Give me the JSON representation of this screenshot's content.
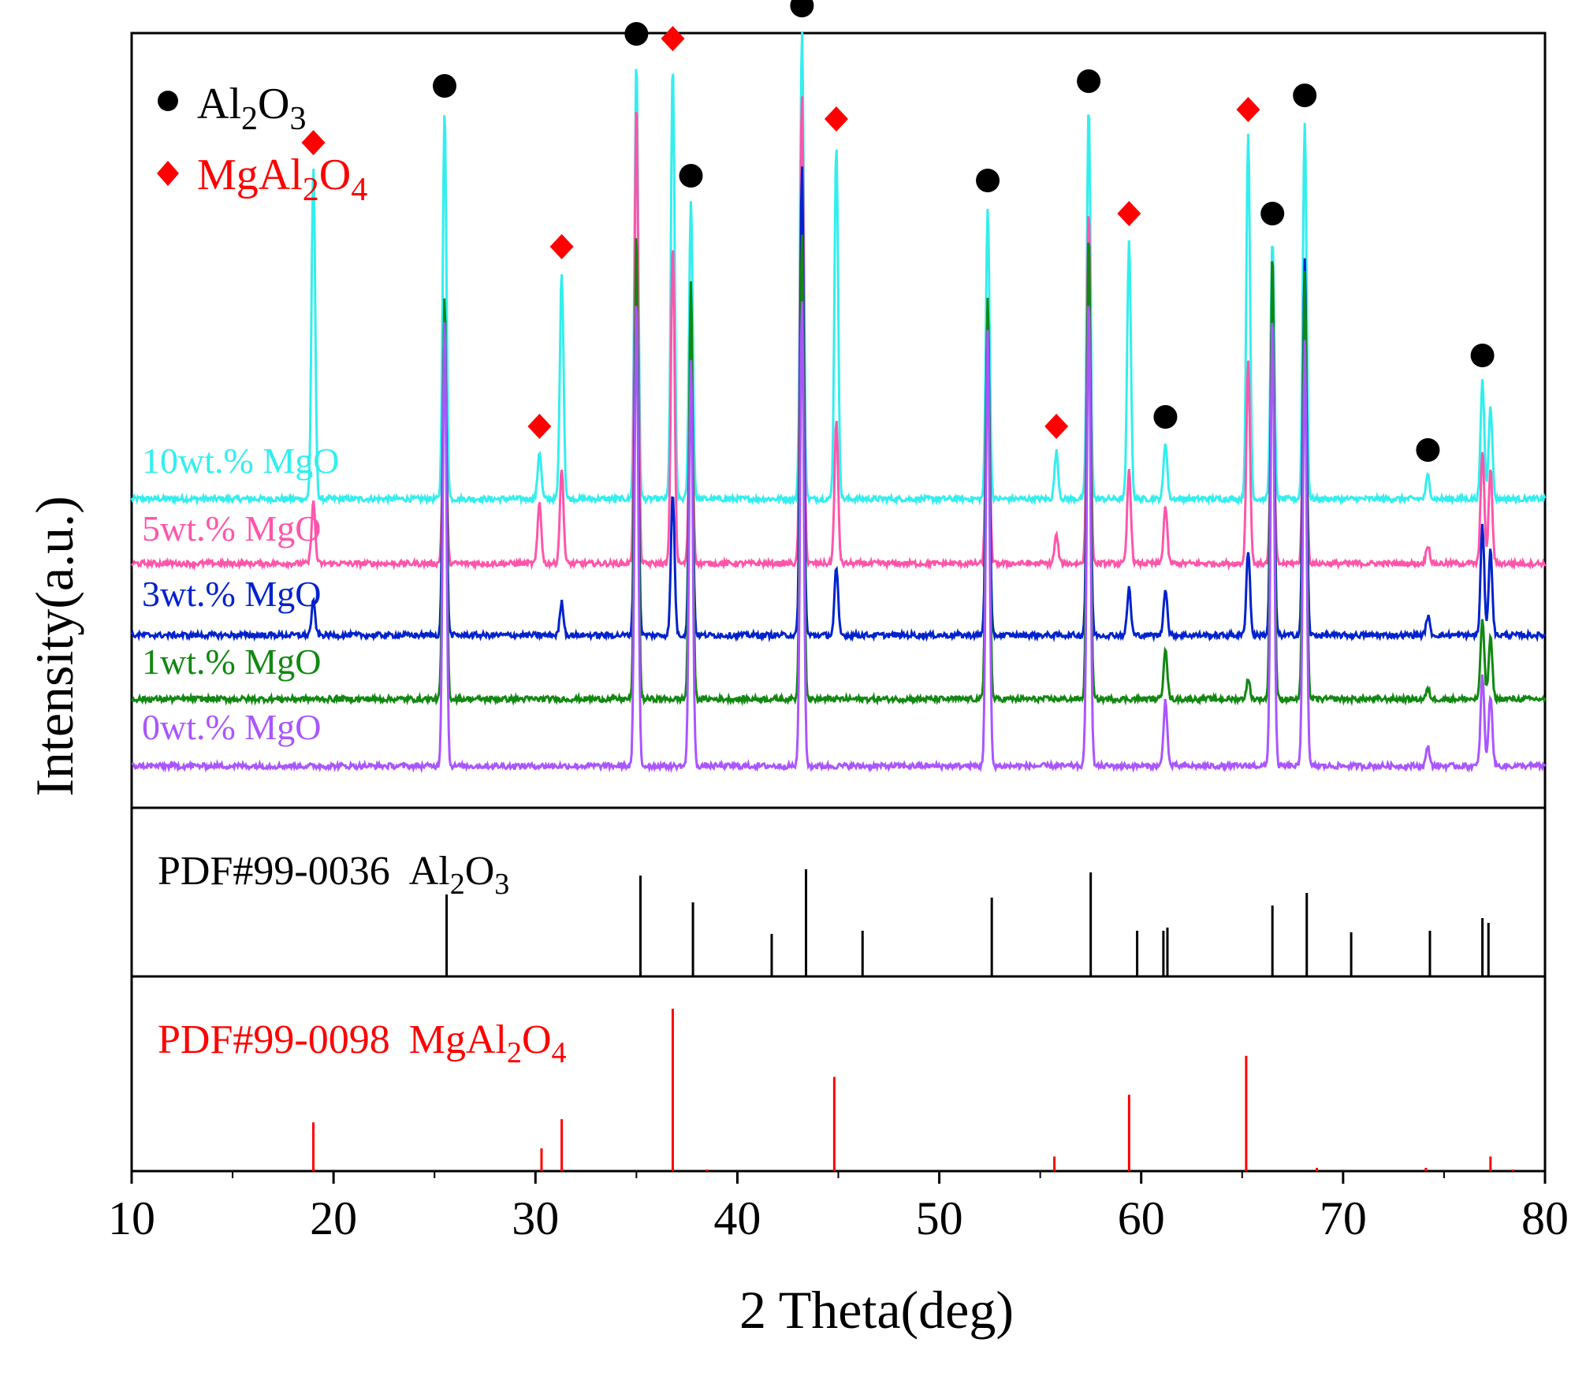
{
  "chart_data": {
    "type": "line",
    "title": "",
    "xlabel": "2 Theta(deg)",
    "ylabel": "Intensity(a.u.)",
    "xlim": [
      10,
      80
    ],
    "xticks": [
      10,
      20,
      30,
      40,
      50,
      60,
      70,
      80
    ],
    "legend": {
      "placement": "top-left",
      "entries": [
        {
          "marker": "circle",
          "color": "#000000",
          "formula": [
            "Al",
            "2",
            "O",
            "3"
          ]
        },
        {
          "marker": "diamond",
          "color": "#ff0000",
          "formula": [
            "MgAl",
            "2",
            "O",
            "4"
          ]
        }
      ]
    },
    "series": [
      {
        "name": "10wt.% MgO",
        "color": "#33eeee",
        "baseline": 0.22,
        "peaks": [
          [
            19.0,
            0.7
          ],
          [
            25.5,
            0.82
          ],
          [
            30.2,
            0.1
          ],
          [
            31.3,
            0.48
          ],
          [
            35.0,
            0.93
          ],
          [
            36.8,
            0.92
          ],
          [
            37.7,
            0.63
          ],
          [
            43.2,
            0.99
          ],
          [
            44.9,
            0.75
          ],
          [
            52.4,
            0.62
          ],
          [
            55.8,
            0.1
          ],
          [
            57.4,
            0.83
          ],
          [
            59.4,
            0.55
          ],
          [
            61.2,
            0.12
          ],
          [
            65.3,
            0.77
          ],
          [
            66.5,
            0.55
          ],
          [
            68.1,
            0.8
          ],
          [
            74.2,
            0.05
          ],
          [
            76.9,
            0.25
          ],
          [
            77.3,
            0.2
          ]
        ]
      },
      {
        "name": "5wt.% MgO",
        "color": "#ff55aa",
        "baseline": 0.22,
        "peaks": [
          [
            19.0,
            0.13
          ],
          [
            25.5,
            0.44
          ],
          [
            30.2,
            0.13
          ],
          [
            31.3,
            0.2
          ],
          [
            35.0,
            0.98
          ],
          [
            36.8,
            0.68
          ],
          [
            37.7,
            0.46
          ],
          [
            43.2,
            0.99
          ],
          [
            44.9,
            0.3
          ],
          [
            52.4,
            0.49
          ],
          [
            55.8,
            0.06
          ],
          [
            57.4,
            0.75
          ],
          [
            59.4,
            0.2
          ],
          [
            61.2,
            0.12
          ],
          [
            65.3,
            0.43
          ],
          [
            66.5,
            0.45
          ],
          [
            68.1,
            0.52
          ],
          [
            74.2,
            0.04
          ],
          [
            76.9,
            0.24
          ],
          [
            77.3,
            0.2
          ]
        ]
      },
      {
        "name": "3wt.% MgO",
        "color": "#0022cc",
        "baseline": 0.22,
        "peaks": [
          [
            19.0,
            0.07
          ],
          [
            25.5,
            0.7
          ],
          [
            31.3,
            0.07
          ],
          [
            35.0,
            0.8
          ],
          [
            36.8,
            0.3
          ],
          [
            37.7,
            0.62
          ],
          [
            43.2,
            0.99
          ],
          [
            44.9,
            0.14
          ],
          [
            52.4,
            0.7
          ],
          [
            57.4,
            0.8
          ],
          [
            59.4,
            0.1
          ],
          [
            61.2,
            0.1
          ],
          [
            65.3,
            0.18
          ],
          [
            66.5,
            0.75
          ],
          [
            68.1,
            0.8
          ],
          [
            74.2,
            0.04
          ],
          [
            76.9,
            0.23
          ],
          [
            77.3,
            0.18
          ]
        ]
      },
      {
        "name": "1wt.% MgO",
        "color": "#118811",
        "baseline": 0.22,
        "peaks": [
          [
            25.5,
            0.85
          ],
          [
            35.0,
            0.99
          ],
          [
            37.7,
            0.88
          ],
          [
            43.2,
            0.99
          ],
          [
            52.4,
            0.85
          ],
          [
            57.4,
            0.99
          ],
          [
            61.2,
            0.11
          ],
          [
            65.3,
            0.04
          ],
          [
            66.5,
            0.95
          ],
          [
            68.1,
            0.9
          ],
          [
            74.2,
            0.02
          ],
          [
            76.9,
            0.17
          ],
          [
            77.3,
            0.13
          ]
        ]
      },
      {
        "name": "0wt.% MgO",
        "color": "#aa55ff",
        "baseline": 0.22,
        "peaks": [
          [
            25.5,
            0.95
          ],
          [
            35.0,
            0.99
          ],
          [
            37.7,
            0.86
          ],
          [
            43.2,
            0.99
          ],
          [
            52.4,
            0.92
          ],
          [
            57.4,
            0.99
          ],
          [
            61.2,
            0.14
          ],
          [
            66.5,
            0.96
          ],
          [
            68.1,
            0.9
          ],
          [
            74.2,
            0.04
          ],
          [
            76.9,
            0.19
          ],
          [
            77.3,
            0.15
          ]
        ]
      }
    ],
    "phase_markers": [
      {
        "phase": "Al2O3",
        "marker": "circle",
        "x": [
          25.5,
          35.0,
          37.7,
          43.2,
          52.4,
          57.4,
          61.2,
          66.5,
          68.1,
          74.2,
          76.9
        ]
      },
      {
        "phase": "MgAl2O4",
        "marker": "diamond",
        "x": [
          19.0,
          30.2,
          31.3,
          36.8,
          44.9,
          55.8,
          59.4,
          65.3
        ]
      }
    ],
    "reference_patterns": [
      {
        "label": "PDF#99-0036",
        "formula": [
          "Al",
          "2",
          "O",
          "3"
        ],
        "color": "#000000",
        "lines": [
          [
            25.6,
            0.52
          ],
          [
            35.2,
            0.64
          ],
          [
            37.8,
            0.47
          ],
          [
            41.7,
            0.27
          ],
          [
            43.4,
            0.68
          ],
          [
            46.2,
            0.29
          ],
          [
            52.6,
            0.5
          ],
          [
            57.5,
            0.66
          ],
          [
            59.8,
            0.29
          ],
          [
            61.1,
            0.29
          ],
          [
            61.3,
            0.31
          ],
          [
            66.5,
            0.45
          ],
          [
            68.2,
            0.53
          ],
          [
            70.4,
            0.28
          ],
          [
            74.3,
            0.29
          ],
          [
            76.9,
            0.37
          ],
          [
            77.2,
            0.34
          ]
        ]
      },
      {
        "label": "PDF#99-0098",
        "formula": [
          "MgAl",
          "2",
          "O",
          "4"
        ],
        "color": "#ff0000",
        "lines": [
          [
            19.0,
            0.3
          ],
          [
            30.3,
            0.14
          ],
          [
            31.3,
            0.32
          ],
          [
            36.8,
            1.0
          ],
          [
            38.5,
            0.01
          ],
          [
            44.8,
            0.58
          ],
          [
            55.7,
            0.09
          ],
          [
            59.4,
            0.47
          ],
          [
            65.2,
            0.71
          ],
          [
            68.7,
            0.02
          ],
          [
            74.1,
            0.02
          ],
          [
            77.3,
            0.09
          ],
          [
            78.4,
            0.01
          ]
        ]
      }
    ]
  }
}
